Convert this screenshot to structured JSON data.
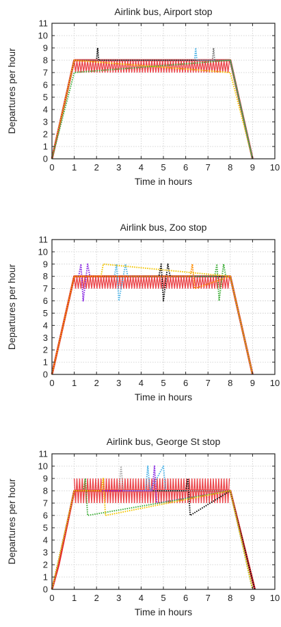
{
  "chart_data": [
    {
      "type": "line",
      "title": "Airlink bus, Airport stop",
      "xlabel": "Time in hours",
      "ylabel": "Departures per hour",
      "xlim": [
        0,
        10
      ],
      "ylim": [
        0,
        11
      ],
      "xticks": [
        "0",
        "1",
        "2",
        "3",
        "4",
        "5",
        "6",
        "7",
        "8",
        "9",
        "10"
      ],
      "yticks": [
        "0",
        "1",
        "2",
        "3",
        "4",
        "5",
        "6",
        "7",
        "8",
        "9",
        "10",
        "11"
      ],
      "grid": true,
      "plateau": {
        "low": 7,
        "high": 8
      },
      "series": [
        {
          "color": "#e8262b",
          "dash": "solid",
          "x": [
            0,
            1,
            8,
            9
          ],
          "y": [
            0,
            8,
            8,
            0
          ]
        },
        {
          "color": "#111111",
          "dash": "dotted",
          "x": [
            0,
            1,
            2,
            2.05,
            2.1,
            8,
            9
          ],
          "y": [
            0,
            8,
            8,
            9,
            8,
            8,
            0
          ]
        },
        {
          "color": "#4db3e6",
          "dash": "dotted",
          "x": [
            0,
            1,
            6.4,
            6.45,
            6.5,
            8,
            9
          ],
          "y": [
            0,
            8,
            8,
            9,
            8,
            8,
            0
          ]
        },
        {
          "color": "#777777",
          "dash": "dotted",
          "x": [
            0,
            1,
            7.2,
            7.25,
            7.3,
            8,
            9
          ],
          "y": [
            0,
            8,
            8,
            9,
            8,
            8,
            0
          ]
        },
        {
          "color": "#f2c500",
          "dash": "dotted",
          "x": [
            0,
            1,
            8,
            9
          ],
          "y": [
            0,
            8,
            7,
            0
          ]
        },
        {
          "color": "#3fae3a",
          "dash": "dotted",
          "x": [
            0,
            1,
            8,
            9
          ],
          "y": [
            0,
            7,
            8,
            0
          ]
        }
      ]
    },
    {
      "type": "line",
      "title": "Airlink bus, Zoo stop",
      "xlabel": "Time in hours",
      "ylabel": "Departures per hour",
      "xlim": [
        0,
        10
      ],
      "ylim": [
        0,
        11
      ],
      "xticks": [
        "0",
        "1",
        "2",
        "3",
        "4",
        "5",
        "6",
        "7",
        "8",
        "9",
        "10"
      ],
      "yticks": [
        "0",
        "1",
        "2",
        "3",
        "4",
        "5",
        "6",
        "7",
        "8",
        "9",
        "10",
        "11"
      ],
      "grid": true,
      "plateau": {
        "low": 7,
        "high": 8
      },
      "series": [
        {
          "color": "#e8262b",
          "dash": "solid",
          "x": [
            0,
            1,
            8,
            9
          ],
          "y": [
            0,
            8,
            8,
            0
          ]
        },
        {
          "color": "#8a2be2",
          "dash": "dotted",
          "x": [
            0,
            1,
            1.2,
            1.3,
            1.4,
            1.6,
            1.7,
            8,
            9
          ],
          "y": [
            0,
            8,
            8,
            9,
            6,
            9,
            8,
            8,
            0
          ]
        },
        {
          "color": "#4db3e6",
          "dash": "dotted",
          "x": [
            0,
            1,
            2.8,
            2.9,
            3.0,
            3.3,
            3.4,
            8,
            9
          ],
          "y": [
            0,
            8,
            8,
            9,
            6,
            9,
            8,
            8,
            0
          ]
        },
        {
          "color": "#111111",
          "dash": "dotted",
          "x": [
            0,
            1,
            4.8,
            4.9,
            5.0,
            5.2,
            5.3,
            8,
            9
          ],
          "y": [
            0,
            8,
            8,
            9,
            6,
            9,
            8,
            8,
            0
          ]
        },
        {
          "color": "#3fae3a",
          "dash": "dotted",
          "x": [
            0,
            1,
            7.3,
            7.4,
            7.5,
            7.7,
            7.8,
            8,
            9
          ],
          "y": [
            0,
            8,
            8,
            9,
            6,
            9,
            8,
            8,
            0
          ]
        },
        {
          "color": "#f2c500",
          "dash": "dotted",
          "x": [
            0,
            1,
            2.2,
            2.3,
            8,
            9
          ],
          "y": [
            0,
            8,
            8,
            9,
            8,
            0
          ]
        },
        {
          "color": "#ff8c00",
          "dash": "dotted",
          "x": [
            0,
            1,
            6.2,
            6.3,
            6.4,
            8,
            9
          ],
          "y": [
            0,
            8,
            8,
            9,
            7,
            8,
            0
          ]
        }
      ]
    },
    {
      "type": "line",
      "title": "Airlink bus, George St stop",
      "xlabel": "Time in hours",
      "ylabel": "Departures per hour",
      "xlim": [
        0,
        10
      ],
      "ylim": [
        0,
        11
      ],
      "xticks": [
        "0",
        "1",
        "2",
        "3",
        "4",
        "5",
        "6",
        "7",
        "8",
        "9",
        "10"
      ],
      "yticks": [
        "0",
        "1",
        "2",
        "3",
        "4",
        "5",
        "6",
        "7",
        "8",
        "9",
        "10",
        "11"
      ],
      "grid": true,
      "plateau": {
        "low": 7,
        "high": 9
      },
      "series": [
        {
          "color": "#e8262b",
          "dash": "solid",
          "x": [
            0,
            0.3,
            1,
            8,
            9.1
          ],
          "y": [
            0,
            2,
            8,
            8,
            0
          ]
        },
        {
          "color": "#111111",
          "dash": "dotted",
          "x": [
            0,
            1,
            6.0,
            6.1,
            6.2,
            8,
            9.1
          ],
          "y": [
            0,
            8,
            8,
            9,
            6,
            8,
            0
          ]
        },
        {
          "color": "#4db3e6",
          "dash": "dotted",
          "x": [
            0,
            1,
            4.2,
            4.3,
            4.4,
            5.0,
            5.1,
            8,
            9
          ],
          "y": [
            0,
            8,
            8,
            10,
            8,
            10,
            8,
            8,
            0
          ]
        },
        {
          "color": "#aaaaaa",
          "dash": "dotted",
          "x": [
            0,
            1,
            3.0,
            3.1,
            3.2,
            8,
            9
          ],
          "y": [
            0,
            8,
            8,
            10,
            8,
            8,
            0
          ]
        },
        {
          "color": "#8a2be2",
          "dash": "dotted",
          "x": [
            0,
            1,
            4.5,
            4.6,
            4.7,
            8,
            9
          ],
          "y": [
            0,
            8,
            8,
            10,
            7,
            8,
            0
          ]
        },
        {
          "color": "#3fae3a",
          "dash": "dotted",
          "x": [
            0,
            1,
            1.4,
            1.5,
            1.6,
            8,
            9
          ],
          "y": [
            0,
            8,
            8,
            9,
            6,
            8,
            0
          ]
        },
        {
          "color": "#f2c500",
          "dash": "dotted",
          "x": [
            0,
            1,
            2.2,
            2.3,
            2.4,
            8,
            9
          ],
          "y": [
            0,
            8,
            8,
            9,
            6,
            8,
            0
          ]
        }
      ]
    }
  ]
}
